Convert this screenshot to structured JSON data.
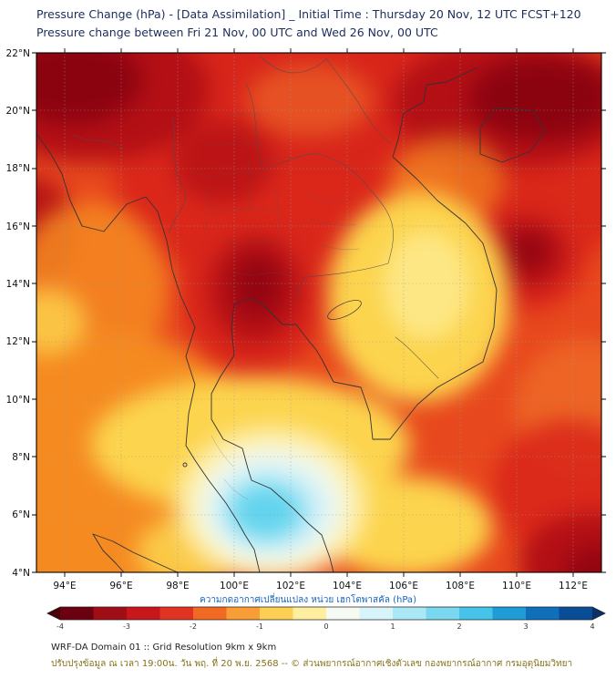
{
  "header": {
    "title_line1": "Pressure Change (hPa) - [Data Assimilation] _ Initial Time : Thursday 20 Nov, 12 UTC FCST+120",
    "title_line2": "Pressure change between Fri 21 Nov, 00 UTC and Wed 26 Nov, 00 UTC"
  },
  "map": {
    "lat_labels": [
      "22°N",
      "20°N",
      "18°N",
      "16°N",
      "14°N",
      "12°N",
      "10°N",
      "8°N",
      "6°N",
      "4°N"
    ],
    "lon_labels": [
      "94°E",
      "96°E",
      "98°E",
      "100°E",
      "102°E",
      "104°E",
      "106°E",
      "108°E",
      "110°E",
      "112°E"
    ]
  },
  "colorbar": {
    "label": "ความกดอากาศเปลี่ยนแปลง หน่วย เฮกโตพาสคัล (hPa)",
    "ticks": [
      "-4",
      "-3",
      "-2",
      "-1",
      "0",
      "1",
      "2",
      "3",
      "4"
    ],
    "min": -4,
    "max": 4,
    "unit": "hPa",
    "segment_colors": [
      "#6b0010",
      "#a00e15",
      "#c8161b",
      "#e23322",
      "#f06a24",
      "#f99d36",
      "#fdcf52",
      "#fdeea0",
      "#f5fbf2",
      "#d8f4fa",
      "#abe8f6",
      "#79d8f0",
      "#46c3e9",
      "#1f9cd8",
      "#0f6fba",
      "#0a4d97"
    ],
    "arrow_left_color": "#4a000b",
    "arrow_right_color": "#08306b"
  },
  "footer": {
    "line1": "WRF-DA Domain 01 :: Grid Resolution 9km x 9km",
    "line2": "ปรับปรุงข้อมูล ณ เวลา 19:00น. วัน พฤ. ที่ 20 พ.ย. 2568 -- © ส่วนพยากรณ์อากาศเชิงตัวเลข กองพยากรณ์อากาศ กรมอุตุนิยมวิทยา"
  },
  "chart_data": {
    "type": "heatmap",
    "title": "Pressure Change (hPa) - [Data Assimilation] _ Initial Time : Thursday 20 Nov, 12 UTC FCST+120",
    "subtitle": "Pressure change between Fri 21 Nov, 00 UTC and Wed 26 Nov, 00 UTC",
    "x_name": "longitude_deg_east",
    "y_name": "latitude_deg_north",
    "x_ticks": [
      94,
      96,
      98,
      100,
      102,
      104,
      106,
      108,
      110,
      112
    ],
    "y_ticks": [
      22,
      20,
      18,
      16,
      14,
      12,
      10,
      8,
      6,
      4
    ],
    "colorbar_label": "ความกดอากาศเปลี่ยนแปลง หน่วย เฮกโตพาสคัล (hPa)",
    "value_range": [
      -4,
      4
    ],
    "unit": "hPa",
    "grid_lon": [
      94,
      96,
      98,
      100,
      102,
      104,
      106,
      108,
      110,
      112
    ],
    "grid_lat": [
      21,
      19,
      17,
      15,
      13,
      11,
      9,
      7,
      5
    ],
    "values_hpa": [
      [
        -3.8,
        -3.5,
        -3.0,
        -2.8,
        -2.6,
        -2.8,
        -3.0,
        -3.5,
        -3.6,
        -3.3
      ],
      [
        -3.3,
        -3.0,
        -3.2,
        -3.0,
        -2.8,
        -2.6,
        -2.4,
        -2.6,
        -3.0,
        -3.0
      ],
      [
        -2.6,
        -2.6,
        -3.0,
        -3.0,
        -2.8,
        -2.2,
        -1.8,
        -2.2,
        -2.8,
        -2.8
      ],
      [
        -2.4,
        -2.4,
        -2.8,
        -3.2,
        -2.8,
        -2.0,
        -1.2,
        -2.0,
        -3.4,
        -2.8
      ],
      [
        -2.2,
        -2.3,
        -2.6,
        -3.3,
        -2.8,
        -1.8,
        -1.0,
        -1.6,
        -2.6,
        -2.4
      ],
      [
        -2.2,
        -2.2,
        -2.2,
        -2.4,
        -2.2,
        -1.6,
        -1.2,
        -1.8,
        -2.2,
        -2.4
      ],
      [
        -2.0,
        -2.0,
        -1.4,
        -1.0,
        -0.8,
        -1.0,
        -1.4,
        -1.8,
        -2.0,
        -2.2
      ],
      [
        -1.8,
        -1.6,
        -0.8,
        1.2,
        1.2,
        -0.2,
        -1.0,
        -1.6,
        -2.0,
        -2.4
      ],
      [
        -1.8,
        -1.4,
        -0.6,
        0.4,
        0.6,
        -0.6,
        -1.2,
        -1.8,
        -2.8,
        -3.4
      ]
    ],
    "notes": "Broad pressure falls of 2-4 hPa across the domain; localized rise up to about +1.5 hPa over southern Thailand / Gulf of Thailand near 101E 6N (cyan area)."
  }
}
